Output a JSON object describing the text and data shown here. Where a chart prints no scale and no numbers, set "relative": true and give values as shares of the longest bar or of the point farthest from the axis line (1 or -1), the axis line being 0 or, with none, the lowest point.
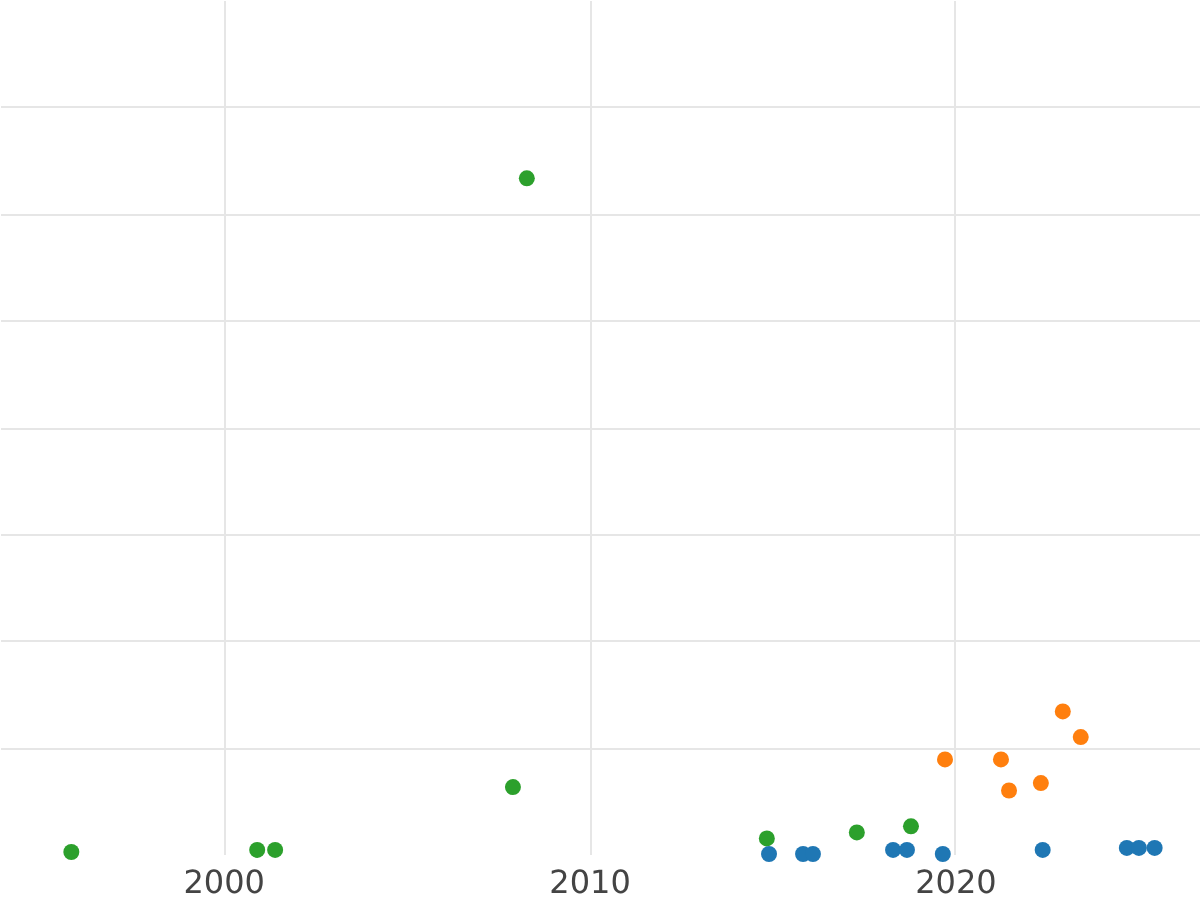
{
  "chart_data": {
    "type": "scatter",
    "relative": true,
    "marker": "circle",
    "grid": true,
    "tick_labels": "x",
    "xlim": [
      1993.9,
      2026.7
    ],
    "xticks": [
      2000,
      2010,
      2020
    ],
    "series": [
      {
        "color": "#2ca02c",
        "x": [
          1995.85,
          2000.93,
          2001.42,
          2007.92,
          2008.3,
          2014.86,
          2017.32,
          2018.8
        ],
        "values": [
          0.003,
          0.006,
          0.006,
          0.099,
          1,
          0.023,
          0.032,
          0.041
        ]
      },
      {
        "color": "#ff7f0e",
        "x": [
          2019.73,
          2021.26,
          2021.48,
          2022.35,
          2022.95,
          2023.44
        ],
        "values": [
          0.14,
          0.14,
          0.094,
          0.105,
          0.211,
          0.173
        ]
      },
      {
        "color": "#1f77b4",
        "x": [
          2014.92,
          2015.85,
          2016.12,
          2018.31,
          2018.69,
          2019.67,
          2022.4,
          2024.7,
          2025.03,
          2025.46
        ],
        "values": [
          0,
          0,
          0,
          0.006,
          0.006,
          0,
          0.006,
          0.009,
          0.009,
          0.009
        ]
      }
    ]
  }
}
